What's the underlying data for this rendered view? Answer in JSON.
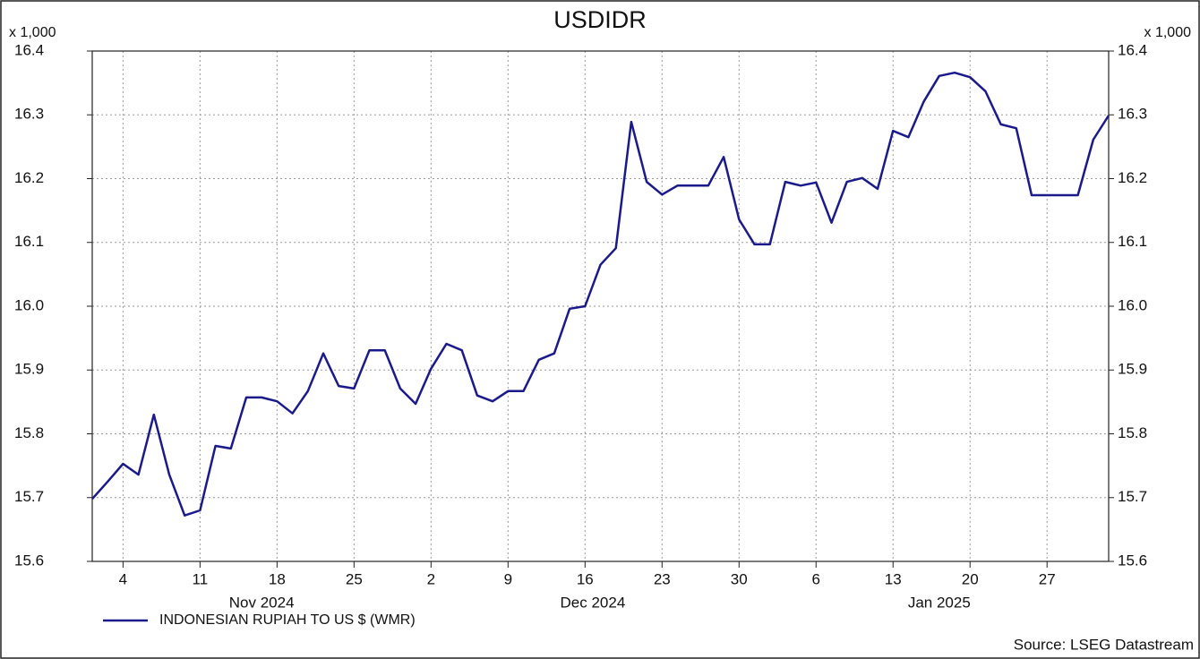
{
  "chart_data": {
    "type": "line",
    "title": "USDIDR",
    "y_unit": "x 1,000",
    "source": "Source: LSEG Datastream",
    "x": [
      "2024-10-31",
      "2024-11-01",
      "2024-11-04",
      "2024-11-05",
      "2024-11-06",
      "2024-11-07",
      "2024-11-08",
      "2024-11-11",
      "2024-11-12",
      "2024-11-13",
      "2024-11-14",
      "2024-11-15",
      "2024-11-18",
      "2024-11-19",
      "2024-11-20",
      "2024-11-21",
      "2024-11-22",
      "2024-11-25",
      "2024-11-26",
      "2024-11-27",
      "2024-11-28",
      "2024-11-29",
      "2024-12-02",
      "2024-12-03",
      "2024-12-04",
      "2024-12-05",
      "2024-12-06",
      "2024-12-09",
      "2024-12-10",
      "2024-12-11",
      "2024-12-12",
      "2024-12-13",
      "2024-12-16",
      "2024-12-17",
      "2024-12-18",
      "2024-12-19",
      "2024-12-20",
      "2024-12-23",
      "2024-12-24",
      "2024-12-25",
      "2024-12-26",
      "2024-12-27",
      "2024-12-30",
      "2024-12-31",
      "2025-01-01",
      "2025-01-02",
      "2025-01-03",
      "2025-01-06",
      "2025-01-07",
      "2025-01-08",
      "2025-01-09",
      "2025-01-10",
      "2025-01-13",
      "2025-01-14",
      "2025-01-15",
      "2025-01-16",
      "2025-01-17",
      "2025-01-20",
      "2025-01-21",
      "2025-01-22",
      "2025-01-23",
      "2025-01-24",
      "2025-01-27",
      "2025-01-28",
      "2025-01-29",
      "2025-01-30",
      "2025-01-31"
    ],
    "series": [
      {
        "name": "INDONESIAN RUPIAH TO US $ (WMR)",
        "color": "#1a1a8c",
        "values": [
          15.698,
          15.725,
          15.753,
          15.736,
          15.83,
          15.736,
          15.672,
          15.68,
          15.781,
          15.777,
          15.857,
          15.857,
          15.851,
          15.832,
          15.867,
          15.926,
          15.875,
          15.871,
          15.931,
          15.931,
          15.871,
          15.847,
          15.902,
          15.941,
          15.931,
          15.86,
          15.851,
          15.867,
          15.867,
          15.916,
          15.926,
          15.996,
          16.0,
          16.065,
          16.091,
          16.289,
          16.195,
          16.175,
          16.189,
          16.189,
          16.189,
          16.234,
          16.136,
          16.097,
          16.097,
          16.195,
          16.189,
          16.194,
          16.131,
          16.195,
          16.201,
          16.184,
          16.275,
          16.265,
          16.321,
          16.361,
          16.366,
          16.359,
          16.337,
          16.285,
          16.279,
          16.174,
          16.174,
          16.174,
          16.174,
          16.261,
          16.299
        ]
      }
    ],
    "xticks": [
      {
        "value": "2024-11-04",
        "label": "4"
      },
      {
        "value": "2024-11-11",
        "label": "11"
      },
      {
        "value": "2024-11-18",
        "label": "18"
      },
      {
        "value": "2024-11-25",
        "label": "25"
      },
      {
        "value": "2024-12-02",
        "label": "2"
      },
      {
        "value": "2024-12-09",
        "label": "9"
      },
      {
        "value": "2024-12-16",
        "label": "16"
      },
      {
        "value": "2024-12-23",
        "label": "23"
      },
      {
        "value": "2024-12-30",
        "label": "30"
      },
      {
        "value": "2025-01-06",
        "label": "6"
      },
      {
        "value": "2025-01-13",
        "label": "13"
      },
      {
        "value": "2025-01-20",
        "label": "20"
      },
      {
        "value": "2025-01-27",
        "label": "27"
      }
    ],
    "month_labels": [
      {
        "value": "2024-11",
        "label": "Nov 2024"
      },
      {
        "value": "2024-12",
        "label": "Dec 2024"
      },
      {
        "value": "2025-01",
        "label": "Jan 2025"
      }
    ],
    "ylim": [
      15.6,
      16.4
    ],
    "yticks": [
      15.6,
      15.7,
      15.8,
      15.9,
      {
        "value": 16,
        "label": "16.0"
      },
      16.1,
      16.2,
      16.3,
      16.4
    ],
    "grid": true,
    "right_axis_mirror": true,
    "legend": "bottom-left"
  }
}
